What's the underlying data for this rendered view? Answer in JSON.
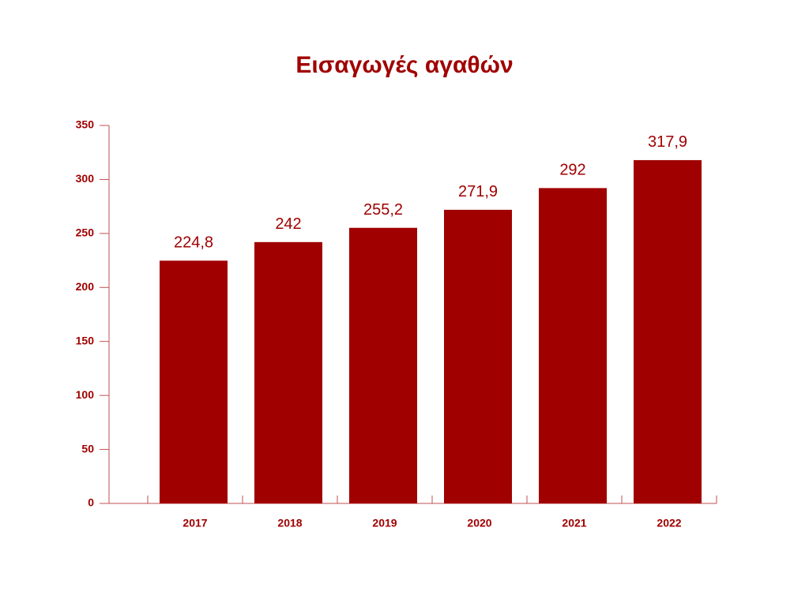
{
  "chart_data": {
    "type": "bar",
    "title": "Εισαγωγές αγαθών",
    "categories": [
      "2017",
      "2018",
      "2019",
      "2020",
      "2021",
      "2022"
    ],
    "values": [
      224.8,
      242,
      255.2,
      271.9,
      292,
      317.9
    ],
    "value_labels": [
      "224,8",
      "242",
      "255,2",
      "271,9",
      "292",
      "317,9"
    ],
    "color": "#a00000",
    "ylim": [
      0,
      350
    ],
    "yticks": [
      0,
      50,
      100,
      150,
      200,
      250,
      300,
      350
    ]
  }
}
